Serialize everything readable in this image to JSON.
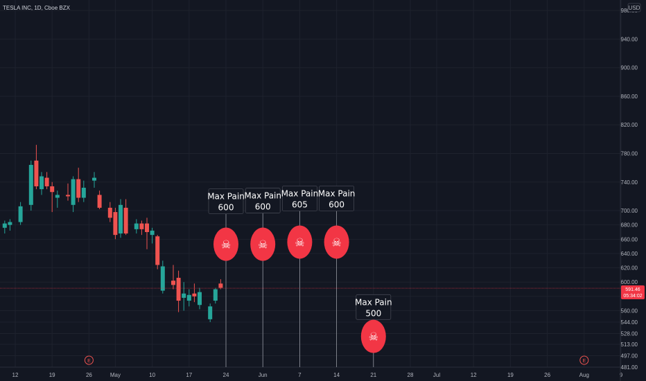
{
  "header": {
    "title": "TESLA INC, 1D, Cboe BZX",
    "currency": "USD"
  },
  "colors": {
    "background": "#131722",
    "up": "#26a69a",
    "down": "#ef5350",
    "grid": "#1e222d",
    "axis_text": "#b2b5be",
    "marker": "#f23645",
    "label_bg": "#131722",
    "label_border": "#434651"
  },
  "price_badge": {
    "price": "591.46",
    "countdown": "05:34:02"
  },
  "chart_data": {
    "type": "candlestick",
    "title": "TESLA INC, 1D, Cboe BZX",
    "ylim": [
      470,
      985
    ],
    "y_ticks": [
      {
        "value": 481,
        "label": "481.00"
      },
      {
        "value": 497,
        "label": "497.00"
      },
      {
        "value": 513,
        "label": "513.00"
      },
      {
        "value": 528,
        "label": "528.00"
      },
      {
        "value": 544,
        "label": "544.00"
      },
      {
        "value": 560,
        "label": "560.00"
      },
      {
        "value": 580,
        "label": "580.00"
      },
      {
        "value": 600,
        "label": "600.00"
      },
      {
        "value": 620,
        "label": "620.00"
      },
      {
        "value": 640,
        "label": "640.00"
      },
      {
        "value": 660,
        "label": "660.00"
      },
      {
        "value": 680,
        "label": "680.00"
      },
      {
        "value": 700,
        "label": "700.00"
      },
      {
        "value": 740,
        "label": "740.00"
      },
      {
        "value": 780,
        "label": "780.00"
      },
      {
        "value": 820,
        "label": "820.00"
      },
      {
        "value": 860,
        "label": "860.00"
      },
      {
        "value": 900,
        "label": "900.00"
      },
      {
        "value": 940,
        "label": "940.00"
      },
      {
        "value": 980,
        "label": "980.00"
      }
    ],
    "x_ticks": [
      {
        "day": 0,
        "label": "12"
      },
      {
        "day": 7,
        "label": "19"
      },
      {
        "day": 14,
        "label": "26"
      },
      {
        "day": 19,
        "label": "May"
      },
      {
        "day": 26,
        "label": "10"
      },
      {
        "day": 33,
        "label": "17"
      },
      {
        "day": 40,
        "label": "24"
      },
      {
        "day": 47,
        "label": "Jun"
      },
      {
        "day": 54,
        "label": "7"
      },
      {
        "day": 61,
        "label": "14"
      },
      {
        "day": 68,
        "label": "21"
      },
      {
        "day": 75,
        "label": "28"
      },
      {
        "day": 80,
        "label": "Jul"
      },
      {
        "day": 87,
        "label": "12"
      },
      {
        "day": 94,
        "label": "19"
      },
      {
        "day": 101,
        "label": "26"
      },
      {
        "day": 108,
        "label": "Aug"
      },
      {
        "day": 115,
        "label": "9"
      }
    ],
    "candles": [
      {
        "day": -2,
        "o": 676,
        "h": 686,
        "l": 668,
        "c": 682
      },
      {
        "day": -1,
        "o": 680,
        "h": 688,
        "l": 672,
        "c": 684
      },
      {
        "day": 1,
        "o": 684,
        "h": 712,
        "l": 680,
        "c": 706
      },
      {
        "day": 3,
        "o": 708,
        "h": 770,
        "l": 700,
        "c": 764
      },
      {
        "day": 4,
        "o": 770,
        "h": 792,
        "l": 730,
        "c": 734
      },
      {
        "day": 5,
        "o": 730,
        "h": 754,
        "l": 722,
        "c": 748
      },
      {
        "day": 6,
        "o": 746,
        "h": 754,
        "l": 730,
        "c": 734
      },
      {
        "day": 7,
        "o": 734,
        "h": 740,
        "l": 698,
        "c": 726
      },
      {
        "day": 8,
        "o": 718,
        "h": 728,
        "l": 704,
        "c": 722
      },
      {
        "day": 10,
        "o": 722,
        "h": 738,
        "l": 714,
        "c": 720
      },
      {
        "day": 11,
        "o": 708,
        "h": 748,
        "l": 698,
        "c": 744
      },
      {
        "day": 12,
        "o": 744,
        "h": 760,
        "l": 712,
        "c": 718
      },
      {
        "day": 13,
        "o": 718,
        "h": 742,
        "l": 712,
        "c": 732
      },
      {
        "day": 15,
        "o": 742,
        "h": 754,
        "l": 732,
        "c": 746
      },
      {
        "day": 16,
        "o": 722,
        "h": 728,
        "l": 702,
        "c": 704
      },
      {
        "day": 18,
        "o": 704,
        "h": 712,
        "l": 684,
        "c": 690
      },
      {
        "day": 19,
        "o": 698,
        "h": 704,
        "l": 660,
        "c": 666
      },
      {
        "day": 20,
        "o": 668,
        "h": 716,
        "l": 662,
        "c": 708
      },
      {
        "day": 21,
        "o": 704,
        "h": 716,
        "l": 666,
        "c": 668
      },
      {
        "day": 23,
        "o": 674,
        "h": 688,
        "l": 668,
        "c": 682
      },
      {
        "day": 24,
        "o": 682,
        "h": 686,
        "l": 666,
        "c": 674
      },
      {
        "day": 25,
        "o": 682,
        "h": 690,
        "l": 646,
        "c": 670
      },
      {
        "day": 26,
        "o": 666,
        "h": 676,
        "l": 654,
        "c": 672
      },
      {
        "day": 27,
        "o": 664,
        "h": 666,
        "l": 618,
        "c": 624
      },
      {
        "day": 28,
        "o": 588,
        "h": 630,
        "l": 584,
        "c": 622
      },
      {
        "day": 30,
        "o": 602,
        "h": 624,
        "l": 590,
        "c": 596
      },
      {
        "day": 31,
        "o": 606,
        "h": 616,
        "l": 558,
        "c": 574
      },
      {
        "day": 32,
        "o": 578,
        "h": 600,
        "l": 560,
        "c": 584
      },
      {
        "day": 33,
        "o": 574,
        "h": 590,
        "l": 566,
        "c": 582
      },
      {
        "day": 34,
        "o": 584,
        "h": 598,
        "l": 572,
        "c": 580
      },
      {
        "day": 35,
        "o": 568,
        "h": 592,
        "l": 562,
        "c": 586
      },
      {
        "day": 37,
        "o": 548,
        "h": 570,
        "l": 544,
        "c": 566
      },
      {
        "day": 38,
        "o": 574,
        "h": 592,
        "l": 570,
        "c": 590
      },
      {
        "day": 39,
        "o": 598,
        "h": 604,
        "l": 590,
        "c": 592
      }
    ],
    "last_price": 591.46,
    "max_pain": [
      {
        "day": 40,
        "title": "Max Pain",
        "value": "600",
        "level": 600,
        "label_price": 714,
        "marker_price": 653
      },
      {
        "day": 47,
        "title": "Max Pain",
        "value": "600",
        "level": 600,
        "label_price": 715,
        "marker_price": 653
      },
      {
        "day": 54,
        "title": "Max Pain",
        "value": "605",
        "level": 605,
        "label_price": 718,
        "marker_price": 656
      },
      {
        "day": 61,
        "title": "Max Pain",
        "value": "600",
        "level": 600,
        "label_price": 718,
        "marker_price": 656
      },
      {
        "day": 68,
        "title": "Max Pain",
        "value": "500",
        "level": 500,
        "label_price": 566,
        "marker_price": 524
      }
    ],
    "earnings": [
      {
        "day": 14,
        "label": "E"
      },
      {
        "day": 108,
        "label": "E"
      }
    ]
  }
}
